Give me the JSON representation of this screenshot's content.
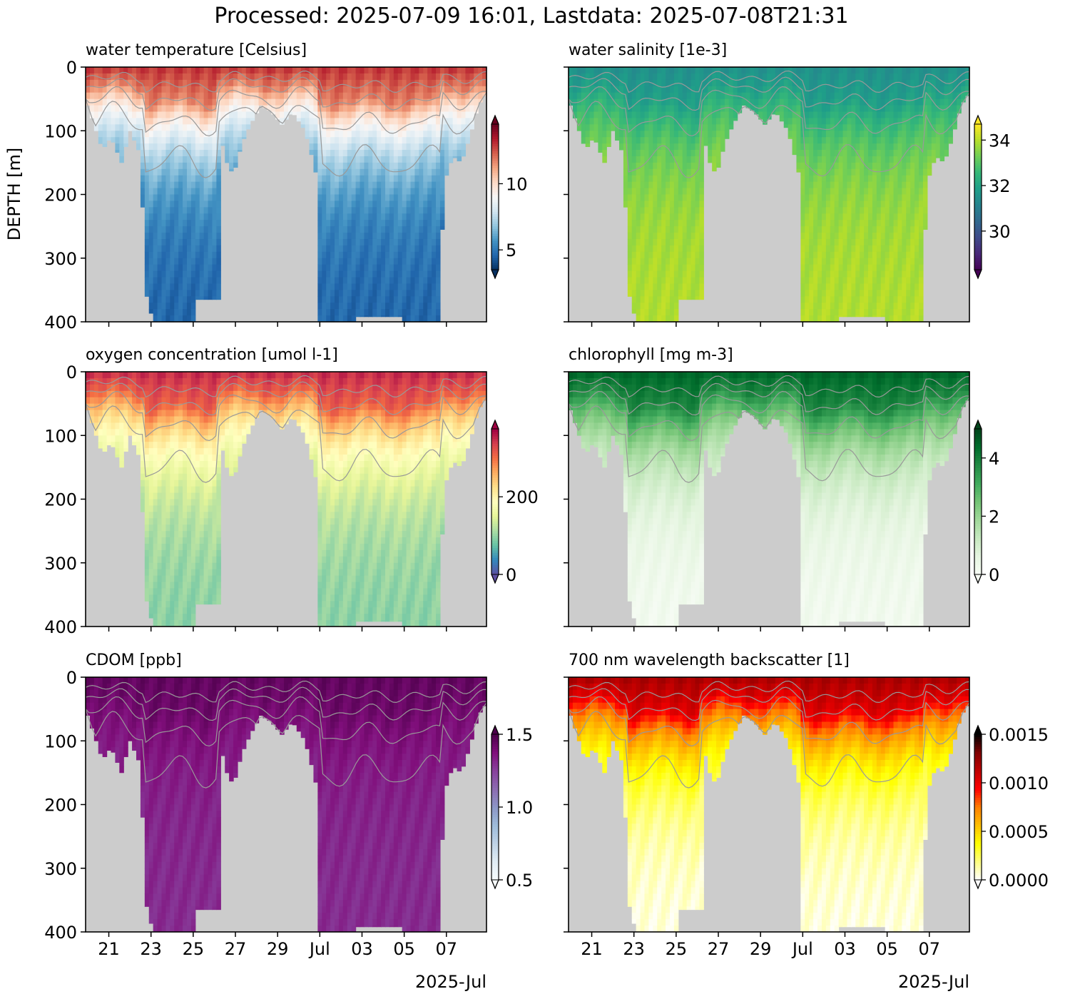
{
  "suptitle": "Processed: 2025-07-09 16:01, Lastdata: 2025-07-08T21:31",
  "chart_data": [
    {
      "type": "heatmap",
      "id": "temp",
      "title": "water temperature [Celsius]",
      "ylabel": "DEPTH [m]",
      "ylim": [
        400,
        0
      ],
      "yticks": [
        "0",
        "100",
        "200",
        "300",
        "400"
      ],
      "colorbar": {
        "colormap": "RdBu_r",
        "range": [
          3.5,
          14.5
        ],
        "ticks": [
          "5",
          "10"
        ],
        "tick_values": [
          5,
          10
        ],
        "extend": "both"
      },
      "profile": {
        "surface": 13,
        "deep": 4.5
      }
    },
    {
      "type": "heatmap",
      "id": "sal",
      "title": "water salinity [1e-3]",
      "ylabel": "",
      "ylim": [
        400,
        0
      ],
      "colorbar": {
        "colormap": "viridis",
        "range": [
          28.3,
          34.7
        ],
        "ticks": [
          "30",
          "32",
          "34"
        ],
        "tick_values": [
          30,
          32,
          34
        ],
        "extend": "both"
      },
      "profile": {
        "surface": 31.5,
        "deep": 34.0
      }
    },
    {
      "type": "heatmap",
      "id": "oxy",
      "title": "oxygen concentration [umol l-1]",
      "ylabel": "",
      "ylim": [
        400,
        0
      ],
      "yticks": [
        "0",
        "100",
        "200",
        "300",
        "400"
      ],
      "colorbar": {
        "colormap": "Spectral_r",
        "range": [
          0,
          375
        ],
        "ticks": [
          "0",
          "200"
        ],
        "tick_values": [
          0,
          200
        ],
        "extend": "both"
      },
      "profile": {
        "surface": 350,
        "deep": 90
      }
    },
    {
      "type": "heatmap",
      "id": "chl",
      "title": "chlorophyll [mg m-3]",
      "ylabel": "",
      "ylim": [
        400,
        0
      ],
      "colorbar": {
        "colormap": "Greens",
        "range": [
          0,
          5
        ],
        "ticks": [
          "0",
          "2",
          "4"
        ],
        "tick_values": [
          0,
          2,
          4
        ],
        "extend": "both"
      },
      "profile": {
        "surface": 4.5,
        "deep": 0.1
      }
    },
    {
      "type": "heatmap",
      "id": "cdom",
      "title": "CDOM [ppb]",
      "ylabel": "",
      "ylim": [
        400,
        0
      ],
      "yticks": [
        "0",
        "100",
        "200",
        "300",
        "400"
      ],
      "colorbar": {
        "colormap": "BuPu",
        "range": [
          0.5,
          1.5
        ],
        "ticks": [
          "0.5",
          "1.0",
          "1.5"
        ],
        "tick_values": [
          0.5,
          1.0,
          1.5
        ],
        "extend": "both"
      },
      "profile": {
        "surface": 1.45,
        "deep": 1.3
      }
    },
    {
      "type": "heatmap",
      "id": "bb700",
      "title": "700 nm wavelength backscatter [1]",
      "ylabel": "",
      "ylim": [
        400,
        0
      ],
      "colorbar": {
        "colormap": "hot_r",
        "range": [
          0,
          0.0015
        ],
        "ticks": [
          "0.0000",
          "0.0005",
          "0.0010",
          "0.0015"
        ],
        "tick_values": [
          0,
          0.0005,
          0.001,
          0.0015
        ],
        "extend": "both"
      },
      "profile": {
        "surface": 0.0012,
        "deep": 3e-05
      }
    }
  ],
  "x_axis": {
    "ticks": [
      "21",
      "23",
      "25",
      "27",
      "29",
      "Jul",
      "03",
      "05",
      "07"
    ],
    "offset_label": "2025-Jul",
    "tick_days_since_jun19": [
      2,
      4,
      6,
      8,
      10,
      12,
      14,
      16,
      18
    ],
    "range_days_since_jun19": [
      0.9,
      19.9
    ]
  },
  "shared": {
    "background_color": "#cccccc",
    "contour_color": "#999999"
  }
}
